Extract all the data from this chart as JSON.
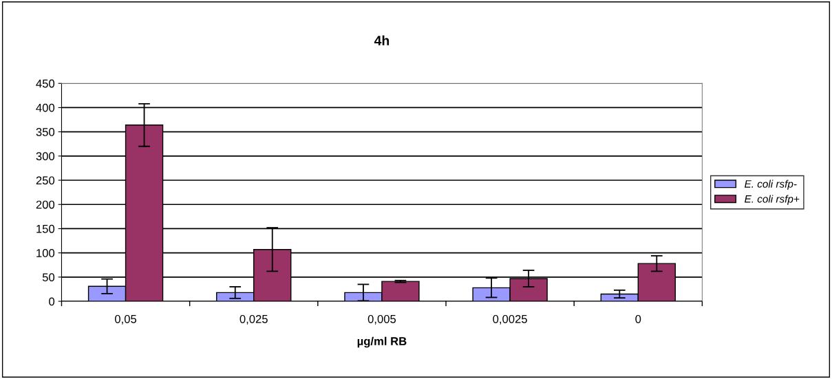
{
  "chart_data": {
    "type": "bar",
    "title": "4h",
    "xlabel": "µg/ml RB",
    "categories": [
      "0,05",
      "0,025",
      "0,005",
      "0,0025",
      "0"
    ],
    "series": [
      {
        "name": "E. coli rsfp-",
        "color": "#9999ff",
        "values": [
          31,
          18,
          18,
          28,
          15
        ],
        "errors": [
          15,
          12,
          17,
          20,
          8
        ]
      },
      {
        "name": "E. coli rsfp+",
        "color": "#993366",
        "values": [
          364,
          107,
          41,
          47,
          78
        ],
        "errors": [
          44,
          45,
          2,
          17,
          16
        ]
      }
    ],
    "ylim": [
      0,
      450
    ],
    "yticks": [
      0,
      50,
      100,
      150,
      200,
      250,
      300,
      350,
      400,
      450
    ],
    "grid": "y",
    "legend": "right"
  }
}
